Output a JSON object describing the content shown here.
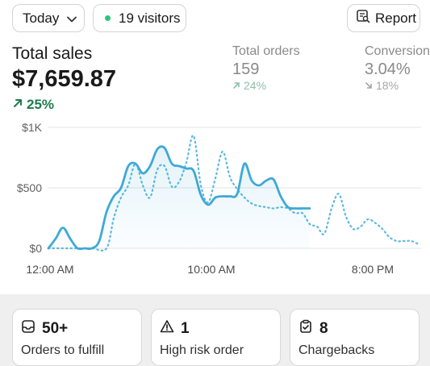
{
  "toolbar": {
    "date_range_label": "Today",
    "visitors_label": "19 visitors",
    "report_label": "Report",
    "live_dot_color": "#29c57b"
  },
  "metrics": {
    "total_sales": {
      "label": "Total sales",
      "value": "$7,659.87",
      "delta": "25%",
      "direction": "up"
    },
    "total_orders": {
      "label": "Total orders",
      "value": "159",
      "delta": "24%",
      "direction": "up"
    },
    "conversion": {
      "label": "Conversion",
      "value": "3.04%",
      "delta": "18%",
      "direction": "down"
    }
  },
  "chart_data": {
    "type": "line",
    "y_ticks": [
      "$1K",
      "$500",
      "$0"
    ],
    "x_ticks": [
      "12:00 AM",
      "10:00 AM",
      "8:00 PM"
    ],
    "ylim": [
      0,
      1000
    ],
    "xlim": [
      0,
      23
    ],
    "grid": true,
    "series": [
      {
        "style": "solid",
        "color": "#3ea9d6",
        "x": [
          0,
          0.45,
          0.9,
          1.35,
          1.8,
          2.25,
          2.7,
          3.15,
          3.6,
          4.05,
          4.5,
          4.95,
          5.4,
          5.85,
          6.3,
          6.75,
          7.2,
          7.65,
          8.1,
          8.55,
          9.0,
          9.45,
          9.9,
          10.35,
          10.8,
          11.25,
          11.7,
          12.15,
          12.6,
          13.05,
          13.5,
          13.95,
          14.4,
          14.85,
          15.3,
          15.75,
          16.2
        ],
        "values": [
          0,
          80,
          170,
          80,
          0,
          0,
          0,
          60,
          300,
          430,
          500,
          680,
          700,
          620,
          680,
          820,
          830,
          700,
          680,
          660,
          640,
          440,
          360,
          420,
          430,
          430,
          450,
          700,
          560,
          520,
          560,
          570,
          430,
          340,
          330,
          330,
          330
        ]
      },
      {
        "style": "dotted",
        "color": "#5fb9e0",
        "x": [
          0,
          0.9,
          1.8,
          2.7,
          3.6,
          4.05,
          4.5,
          4.95,
          5.4,
          5.85,
          6.3,
          6.75,
          7.2,
          7.65,
          8.1,
          8.55,
          9.0,
          9.45,
          9.9,
          10.35,
          10.8,
          11.25,
          11.7,
          12.15,
          12.6,
          13.05,
          13.5,
          13.95,
          14.4,
          14.85,
          15.3,
          15.75,
          16.2,
          16.65,
          17.1,
          17.55,
          18.0,
          18.45,
          18.9,
          19.35,
          19.8,
          20.25,
          20.7,
          21.15,
          21.6,
          22.05,
          22.5,
          23.0
        ],
        "values": [
          0,
          0,
          0,
          0,
          0,
          250,
          420,
          520,
          700,
          520,
          420,
          650,
          680,
          510,
          550,
          710,
          930,
          520,
          380,
          580,
          800,
          590,
          490,
          420,
          370,
          350,
          340,
          330,
          340,
          330,
          290,
          290,
          200,
          180,
          120,
          330,
          450,
          260,
          160,
          180,
          240,
          210,
          160,
          90,
          60,
          60,
          60,
          30
        ]
      }
    ]
  },
  "cards": [
    {
      "icon": "inbox-icon",
      "value": "50+",
      "label": "Orders to fulfill"
    },
    {
      "icon": "warning-icon",
      "value": "1",
      "label": "High risk order"
    },
    {
      "icon": "clipboard-icon",
      "value": "8",
      "label": "Chargebacks"
    }
  ]
}
